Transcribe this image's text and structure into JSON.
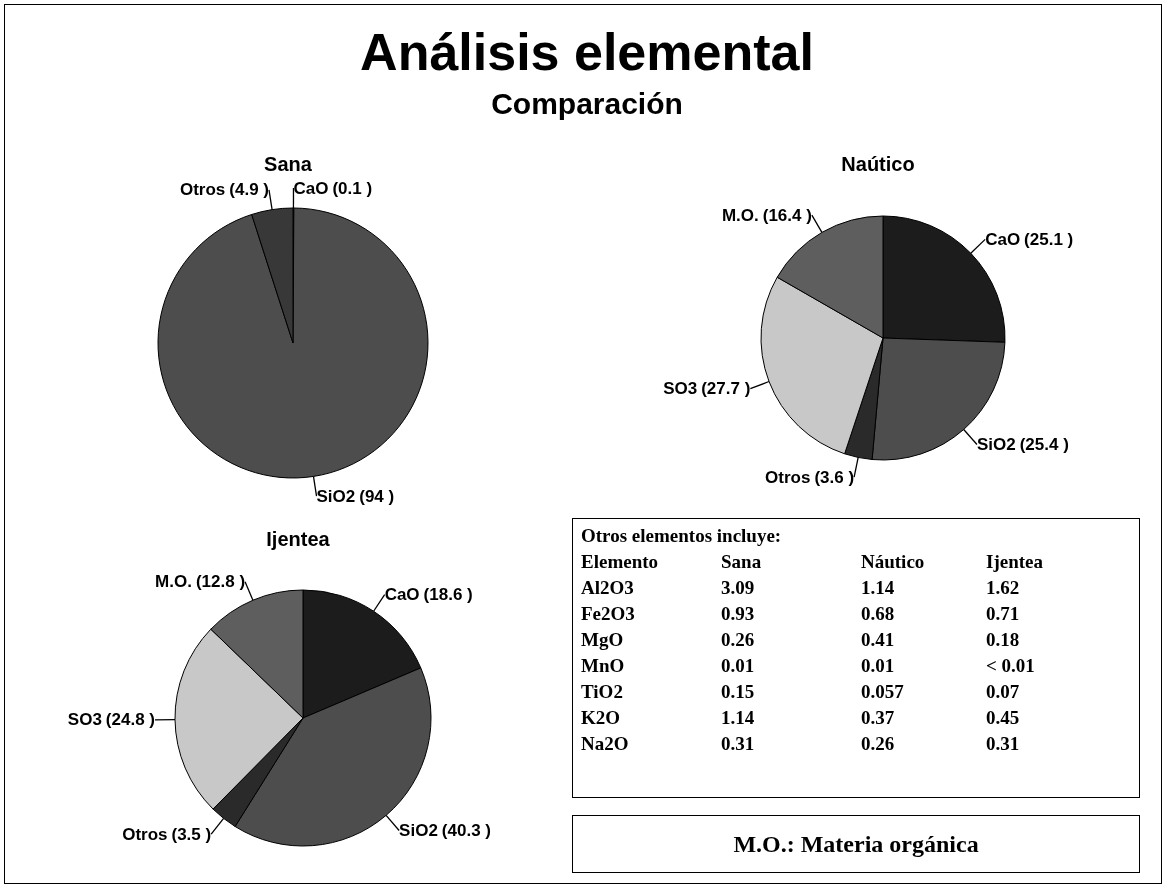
{
  "chart_data": [
    {
      "type": "other",
      "title": "Análisis elemental",
      "subtitle": "Comparación"
    },
    {
      "type": "pie",
      "title": "Sana",
      "categories": [
        "CaO",
        "SiO2",
        "Otros"
      ],
      "values": [
        0.1,
        94,
        4.9
      ],
      "value_labels": [
        "(0.1 )",
        "(94 )",
        "(4.9 )"
      ],
      "colors": [
        "#1c1c1c",
        "#4d4d4d",
        "#383838"
      ]
    },
    {
      "type": "pie",
      "title": "Naútico",
      "categories": [
        "CaO",
        "SiO2",
        "Otros",
        "SO3",
        "M.O."
      ],
      "values": [
        25.1,
        25.4,
        3.6,
        27.7,
        16.4
      ],
      "value_labels": [
        "(25.1 )",
        "(25.4 )",
        "(3.6 )",
        "(27.7 )",
        "(16.4 )"
      ],
      "colors": [
        "#1c1c1c",
        "#4d4d4d",
        "#2a2a2a",
        "#c8c8c8",
        "#5e5e5e"
      ]
    },
    {
      "type": "pie",
      "title": "Ijentea",
      "categories": [
        "CaO",
        "SiO2",
        "Otros",
        "SO3",
        "M.O."
      ],
      "values": [
        18.6,
        40.3,
        3.5,
        24.8,
        12.8
      ],
      "value_labels": [
        "(18.6 )",
        "(40.3 )",
        "(3.5 )",
        "(24.8 )",
        "(12.8 )"
      ],
      "colors": [
        "#1c1c1c",
        "#4d4d4d",
        "#2a2a2a",
        "#c8c8c8",
        "#5e5e5e"
      ]
    },
    {
      "type": "other",
      "title": "Otros elementos incluye:",
      "categories": [
        "Elemento",
        "Sana",
        "Náutico",
        "Ijentea"
      ],
      "annotations": [
        "Al2O3",
        "3.09",
        "1.14",
        "1.62",
        "Fe2O3",
        "0.93",
        "0.68",
        "0.71",
        "MgO",
        "0.26",
        "0.41",
        "0.18",
        "MnO",
        "0.01",
        "0.01",
        "< 0.01",
        "TiO2",
        "0.15",
        "0.057",
        "0.07",
        "K2O",
        "1.14",
        "0.37",
        "0.45",
        "Na2O",
        "0.31",
        "0.26",
        "0.31"
      ]
    },
    {
      "type": "other",
      "title": "M.O.: Materia orgánica"
    }
  ]
}
